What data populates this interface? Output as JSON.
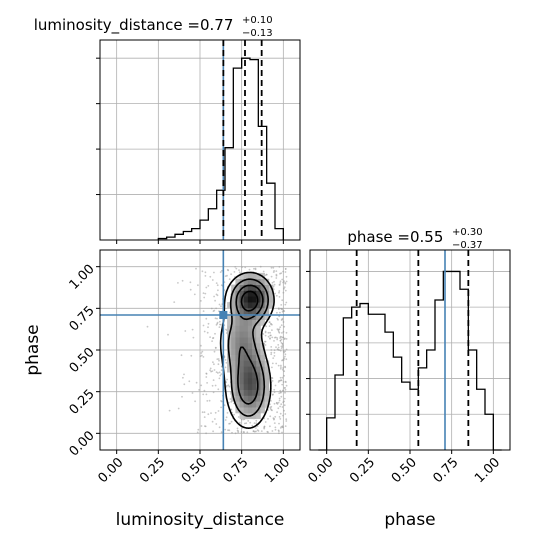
{
  "colors": {
    "truth": "#4682b4",
    "hist": "#000000",
    "grid": "#b0b0b0",
    "scatter": "#9a9a9a",
    "quantile": "#000000"
  },
  "chart_data": [
    {
      "type": "histogram",
      "panel": "top-left",
      "parameter": "luminosity_distance",
      "title": {
        "lhs": "luminosity_distance = ",
        "median": "0.77",
        "plus": "+0.10",
        "minus": "−0.13"
      },
      "xlim": [
        -0.1,
        1.1
      ],
      "bins": [
        0.25,
        0.3,
        0.35,
        0.4,
        0.45,
        0.5,
        0.55,
        0.6,
        0.65,
        0.7,
        0.75,
        0.8,
        0.85,
        0.9,
        0.95,
        1.0
      ],
      "counts": [
        1,
        2,
        4,
        6,
        8,
        14,
        22,
        35,
        65,
        121,
        128,
        127,
        80,
        40,
        8
      ],
      "quantiles": [
        0.64,
        0.77,
        0.87
      ],
      "truth": 0.64,
      "grid": true
    },
    {
      "type": "scatter-contour",
      "panel": "bottom-left",
      "x_param": "luminosity_distance",
      "y_param": "phase",
      "xlabel": "luminosity_distance",
      "ylabel": "phase",
      "xlim": [
        -0.1,
        1.1
      ],
      "ylim": [
        -0.1,
        1.1
      ],
      "xticks": [
        "0.00",
        "0.25",
        "0.50",
        "0.75",
        "1.00"
      ],
      "yticks": [
        "0.00",
        "0.25",
        "0.50",
        "0.75",
        "1.00"
      ],
      "density_modes": [
        {
          "x": 0.8,
          "y": 0.8,
          "sx": 0.07,
          "sy": 0.08,
          "w": 1.0
        },
        {
          "x": 0.79,
          "y": 0.28,
          "sx": 0.07,
          "sy": 0.13,
          "w": 0.75
        },
        {
          "x": 0.74,
          "y": 0.55,
          "sx": 0.07,
          "sy": 0.12,
          "w": 0.45
        }
      ],
      "contour_levels": 4,
      "truth": {
        "x": 0.64,
        "y": 0.71
      },
      "grid": true
    },
    {
      "type": "histogram",
      "panel": "bottom-right",
      "parameter": "phase",
      "title": {
        "lhs": "phase = ",
        "median": "0.55",
        "plus": "+0.30",
        "minus": "−0.37"
      },
      "xlabel": "phase",
      "xlim": [
        -0.1,
        1.1
      ],
      "xticks": [
        "0.00",
        "0.25",
        "0.50",
        "0.75",
        "1.00"
      ],
      "bins": [
        -0.05,
        0.0,
        0.05,
        0.1,
        0.15,
        0.2,
        0.25,
        0.3,
        0.35,
        0.4,
        0.45,
        0.5,
        0.55,
        0.6,
        0.65,
        0.7,
        0.75,
        0.8,
        0.85,
        0.9,
        0.95,
        1.0,
        1.05
      ],
      "counts": [
        0,
        9,
        21,
        37,
        40,
        41,
        38,
        38,
        33,
        26,
        19,
        17,
        23,
        28,
        42,
        50,
        50,
        45,
        28,
        17,
        10,
        0
      ],
      "quantiles": [
        0.18,
        0.55,
        0.85
      ],
      "truth": 0.71,
      "grid": true
    }
  ]
}
